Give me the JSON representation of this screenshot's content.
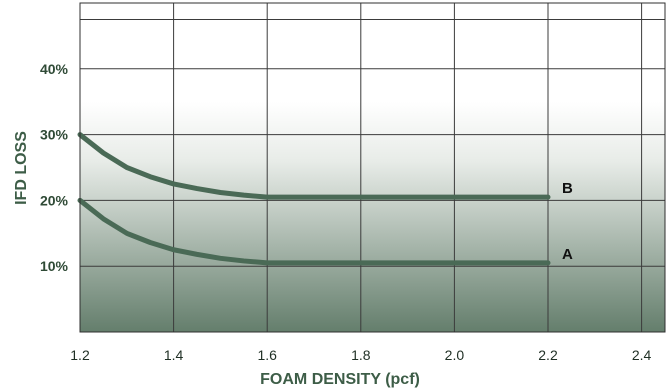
{
  "chart_data": {
    "type": "line",
    "title": "",
    "xlabel": "FOAM DENSITY (pcf)",
    "ylabel": "IFD LOSS",
    "xlim": [
      1.2,
      2.45
    ],
    "ylim": [
      0,
      50
    ],
    "x_ticks": [
      "1.2",
      "1.4",
      "1.6",
      "1.8",
      "2.0",
      "2.2",
      "2.4"
    ],
    "x_tick_values": [
      1.2,
      1.4,
      1.6,
      1.8,
      2.0,
      2.2,
      2.4
    ],
    "y_ticks": [
      "10%",
      "20%",
      "30%",
      "40%"
    ],
    "y_tick_values": [
      10,
      20,
      30,
      40
    ],
    "grid": true,
    "series": [
      {
        "name": "A",
        "color": "#4a6a56",
        "x": [
          1.2,
          1.25,
          1.3,
          1.35,
          1.4,
          1.45,
          1.5,
          1.55,
          1.6,
          1.7,
          1.8,
          1.9,
          2.0,
          2.1,
          2.2
        ],
        "y": [
          20,
          17.2,
          15,
          13.6,
          12.5,
          11.8,
          11.2,
          10.8,
          10.5,
          10.5,
          10.5,
          10.5,
          10.5,
          10.5,
          10.5
        ]
      },
      {
        "name": "B",
        "color": "#4a6a56",
        "x": [
          1.2,
          1.25,
          1.3,
          1.35,
          1.4,
          1.45,
          1.5,
          1.55,
          1.6,
          1.7,
          1.8,
          1.9,
          2.0,
          2.1,
          2.2
        ],
        "y": [
          30,
          27.2,
          25,
          23.6,
          22.5,
          21.8,
          21.2,
          20.8,
          20.5,
          20.5,
          20.5,
          20.5,
          20.5,
          20.5,
          20.5
        ]
      }
    ]
  }
}
